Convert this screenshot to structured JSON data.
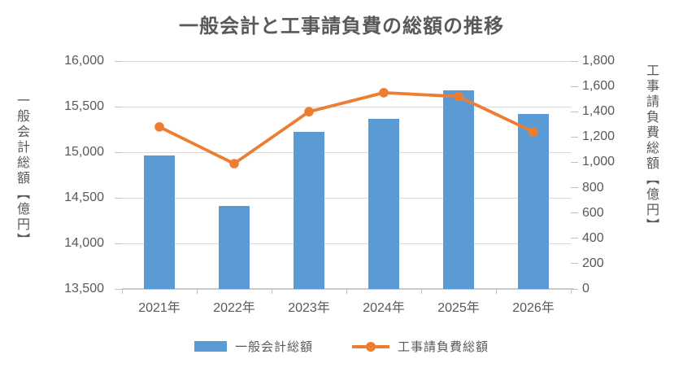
{
  "title": "一般会計と工事請負費の総額の推移",
  "chart_data": {
    "type": "combo",
    "categories": [
      "2021年",
      "2022年",
      "2023年",
      "2024年",
      "2025年",
      "2026年"
    ],
    "series": [
      {
        "name": "一般会計総額",
        "type": "bar",
        "axis": "left",
        "color": "#5B9BD5",
        "values": [
          14960,
          14410,
          15220,
          15370,
          15680,
          15420
        ]
      },
      {
        "name": "工事請負費総額",
        "type": "line",
        "axis": "right",
        "color": "#ED7D31",
        "values": [
          1280,
          990,
          1400,
          1550,
          1520,
          1240
        ]
      }
    ],
    "left_axis": {
      "title": "一般会計総額【億円】",
      "min": 13500,
      "max": 16000,
      "step": 500,
      "tick_labels": [
        "16,000",
        "15,500",
        "15,000",
        "14,500",
        "14,000",
        "13,500"
      ]
    },
    "right_axis": {
      "title": "工事請負費総額【億円】",
      "min": 0,
      "max": 1800,
      "step": 200,
      "tick_labels": [
        "1,800",
        "1,600",
        "1,400",
        "1,200",
        "1,000",
        "800",
        "600",
        "400",
        "200",
        "0"
      ]
    },
    "grid": true,
    "legend_position": "bottom",
    "colors": {
      "bar": "#5B9BD5",
      "line": "#ED7D31",
      "gridline": "#D9D9D9",
      "axis_line": "#C9C9C9",
      "text": "#595959"
    }
  }
}
